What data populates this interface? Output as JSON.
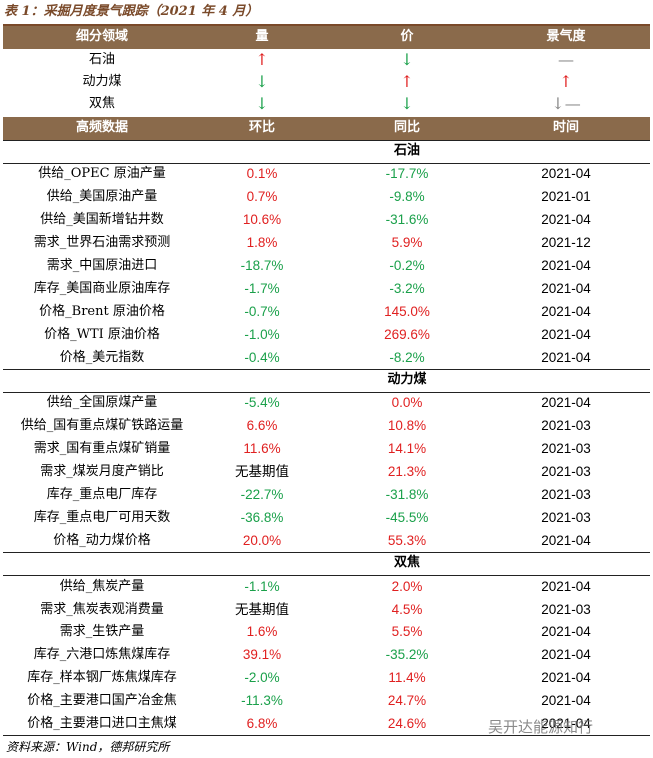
{
  "title": "表 1：采掘月度景气跟踪（2021 年 4 月）",
  "summary": {
    "header": [
      "细分领域",
      "量",
      "价",
      "景气度"
    ],
    "rows": [
      [
        "石油",
        "↑",
        "↓",
        "—"
      ],
      [
        "动力煤",
        "↓",
        "↑",
        "↑"
      ],
      [
        "双焦",
        "↓",
        "↓",
        "↓—"
      ]
    ]
  },
  "table": {
    "header": [
      "高频数据",
      "环比",
      "同比",
      "时间"
    ],
    "sections": [
      {
        "name": "石油",
        "rows": [
          [
            "供给_OPEC 原油产量",
            "0.1%",
            "-17.7%",
            "2021-04"
          ],
          [
            "供给_美国原油产量",
            "0.7%",
            "-9.8%",
            "2021-01"
          ],
          [
            "供给_美国新增钻井数",
            "10.6%",
            "-31.6%",
            "2021-04"
          ],
          [
            "需求_世界石油需求预测",
            "1.8%",
            "5.9%",
            "2021-12"
          ],
          [
            "需求_中国原油进口",
            "-18.7%",
            "-0.2%",
            "2021-04"
          ],
          [
            "库存_美国商业原油库存",
            "-1.7%",
            "-3.2%",
            "2021-04"
          ],
          [
            "价格_Brent 原油价格",
            "-0.7%",
            "145.0%",
            "2021-04"
          ],
          [
            "价格_WTI 原油价格",
            "-1.0%",
            "269.6%",
            "2021-04"
          ],
          [
            "价格_美元指数",
            "-0.4%",
            "-8.2%",
            "2021-04"
          ]
        ]
      },
      {
        "name": "动力煤",
        "rows": [
          [
            "供给_全国原煤产量",
            "-5.4%",
            "0.0%",
            "2021-04"
          ],
          [
            "供给_国有重点煤矿铁路运量",
            "6.6%",
            "10.8%",
            "2021-03"
          ],
          [
            "需求_国有重点煤矿销量",
            "11.6%",
            "14.1%",
            "2021-03"
          ],
          [
            "需求_煤炭月度产销比",
            "无基期值",
            "21.3%",
            "2021-03"
          ],
          [
            "库存_重点电厂库存",
            "-22.7%",
            "-31.8%",
            "2021-03"
          ],
          [
            "库存_重点电厂可用天数",
            "-36.8%",
            "-45.5%",
            "2021-03"
          ],
          [
            "价格_动力煤价格",
            "20.0%",
            "55.3%",
            "2021-04"
          ]
        ]
      },
      {
        "name": "双焦",
        "rows": [
          [
            "供给_焦炭产量",
            "-1.1%",
            "2.0%",
            "2021-04"
          ],
          [
            "需求_焦炭表观消费量",
            "无基期值",
            "4.5%",
            "2021-03"
          ],
          [
            "需求_生铁产量",
            "1.6%",
            "5.5%",
            "2021-04"
          ],
          [
            "库存_六港口炼焦煤库存",
            "39.1%",
            "-35.2%",
            "2021-04"
          ],
          [
            "库存_样本钢厂炼焦煤库存",
            "-2.0%",
            "11.4%",
            "2021-04"
          ],
          [
            "价格_主要港口国产冶金焦",
            "-11.3%",
            "24.7%",
            "2021-04"
          ],
          [
            "价格_主要港口进口主焦煤",
            "6.8%",
            "24.6%",
            "2021-04"
          ]
        ]
      }
    ]
  },
  "source": "资料来源：Wind，德邦研究所",
  "watermark": "吴开达能源知行"
}
